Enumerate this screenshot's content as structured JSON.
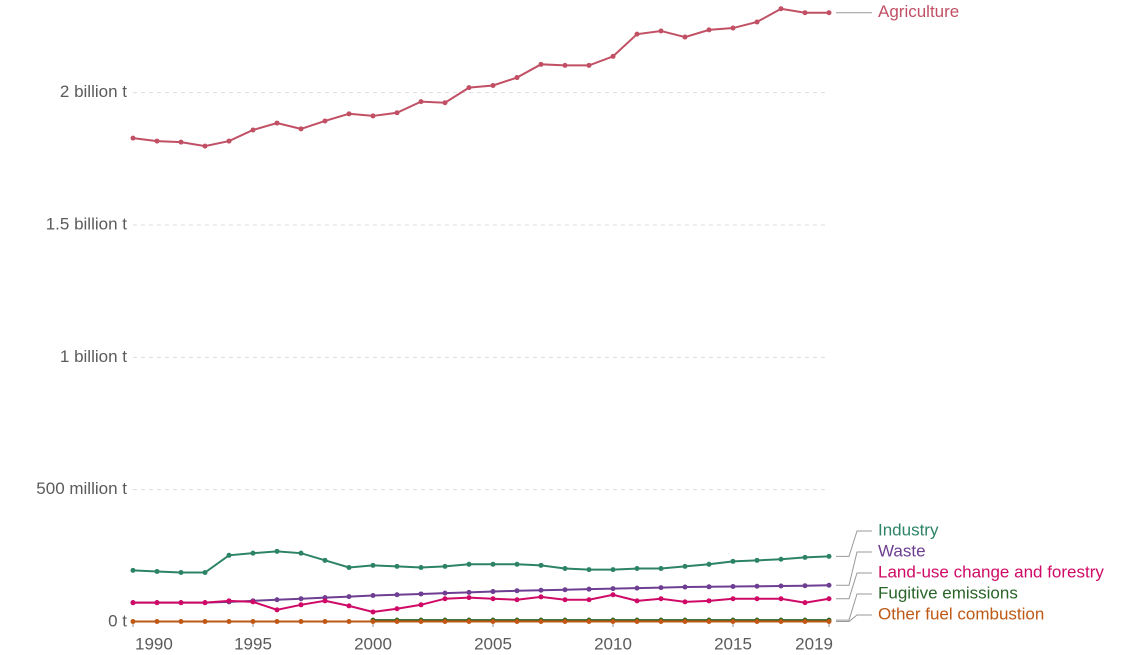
{
  "chart_data": {
    "type": "line",
    "x": [
      1990,
      1991,
      1992,
      1993,
      1994,
      1995,
      1996,
      1997,
      1998,
      1999,
      2000,
      2001,
      2002,
      2003,
      2004,
      2005,
      2006,
      2007,
      2008,
      2009,
      2010,
      2011,
      2012,
      2013,
      2014,
      2015,
      2016,
      2017,
      2018,
      2019
    ],
    "xlim": [
      1990,
      2019
    ],
    "xticks": [
      1990,
      1995,
      2000,
      2005,
      2010,
      2015,
      2019
    ],
    "ylim": [
      0,
      2350000000
    ],
    "yticks": [
      {
        "value": 0,
        "label": "0 t"
      },
      {
        "value": 500000000,
        "label": "500 million t"
      },
      {
        "value": 1000000000,
        "label": "1 billion t"
      },
      {
        "value": 1500000000,
        "label": "1.5 billion t"
      },
      {
        "value": 2000000000,
        "label": "2 billion t"
      }
    ],
    "grid": true,
    "series": [
      {
        "name": "Agriculture",
        "color": "#c15065",
        "values": [
          1828000000,
          1817000000,
          1813000000,
          1798000000,
          1817000000,
          1859000000,
          1885000000,
          1863000000,
          1893000000,
          1920000000,
          1912000000,
          1924000000,
          1966000000,
          1962000000,
          2019000000,
          2027000000,
          2057000000,
          2107000000,
          2103000000,
          2103000000,
          2137000000,
          2221000000,
          2233000000,
          2210000000,
          2237000000,
          2244000000,
          2267000000,
          2317000000,
          2302000000,
          2302000000
        ]
      },
      {
        "name": "Industry",
        "color": "#2c8465",
        "values": [
          195000000,
          191000000,
          187000000,
          187000000,
          252000000,
          260000000,
          267000000,
          260000000,
          233000000,
          206000000,
          214000000,
          210000000,
          206000000,
          210000000,
          218000000,
          218000000,
          218000000,
          214000000,
          202000000,
          198000000,
          198000000,
          202000000,
          202000000,
          210000000,
          218000000,
          229000000,
          233000000,
          237000000,
          244000000,
          248000000
        ]
      },
      {
        "name": "Waste",
        "color": "#6d3e91",
        "values": [
          73000000,
          73000000,
          73000000,
          73000000,
          76000000,
          80000000,
          84000000,
          88000000,
          92000000,
          96000000,
          100000000,
          103000000,
          106000000,
          109000000,
          112000000,
          115000000,
          118000000,
          120000000,
          122000000,
          124000000,
          126000000,
          128000000,
          130000000,
          132000000,
          133000000,
          134000000,
          135000000,
          136000000,
          137000000,
          139000000
        ]
      },
      {
        "name": "Land-use change and forestry",
        "color": "#cf0a66",
        "values": [
          73000000,
          73000000,
          73000000,
          73000000,
          80000000,
          76000000,
          46000000,
          65000000,
          80000000,
          61000000,
          38000000,
          50000000,
          65000000,
          88000000,
          92000000,
          88000000,
          84000000,
          95000000,
          84000000,
          84000000,
          103000000,
          80000000,
          88000000,
          76000000,
          80000000,
          88000000,
          88000000,
          88000000,
          73000000,
          88000000
        ]
      },
      {
        "name": "Fugitive emissions",
        "color": "#286428",
        "values": [
          null,
          null,
          null,
          null,
          null,
          null,
          null,
          null,
          null,
          null,
          7000000,
          7000000,
          7000000,
          7000000,
          7000000,
          7000000,
          7000000,
          7000000,
          7000000,
          7000000,
          7000000,
          7000000,
          7000000,
          7000000,
          7000000,
          7000000,
          7000000,
          7000000,
          7000000,
          7000000
        ]
      },
      {
        "name": "Other fuel combustion",
        "color": "#be5915",
        "values": [
          2000000,
          2000000,
          2000000,
          2000000,
          2000000,
          2000000,
          2000000,
          2000000,
          2000000,
          2000000,
          2000000,
          2000000,
          2000000,
          2000000,
          2000000,
          2000000,
          2000000,
          2000000,
          2000000,
          2000000,
          2000000,
          2000000,
          2000000,
          2000000,
          2000000,
          2000000,
          2000000,
          2000000,
          2000000,
          2000000
        ]
      }
    ]
  }
}
